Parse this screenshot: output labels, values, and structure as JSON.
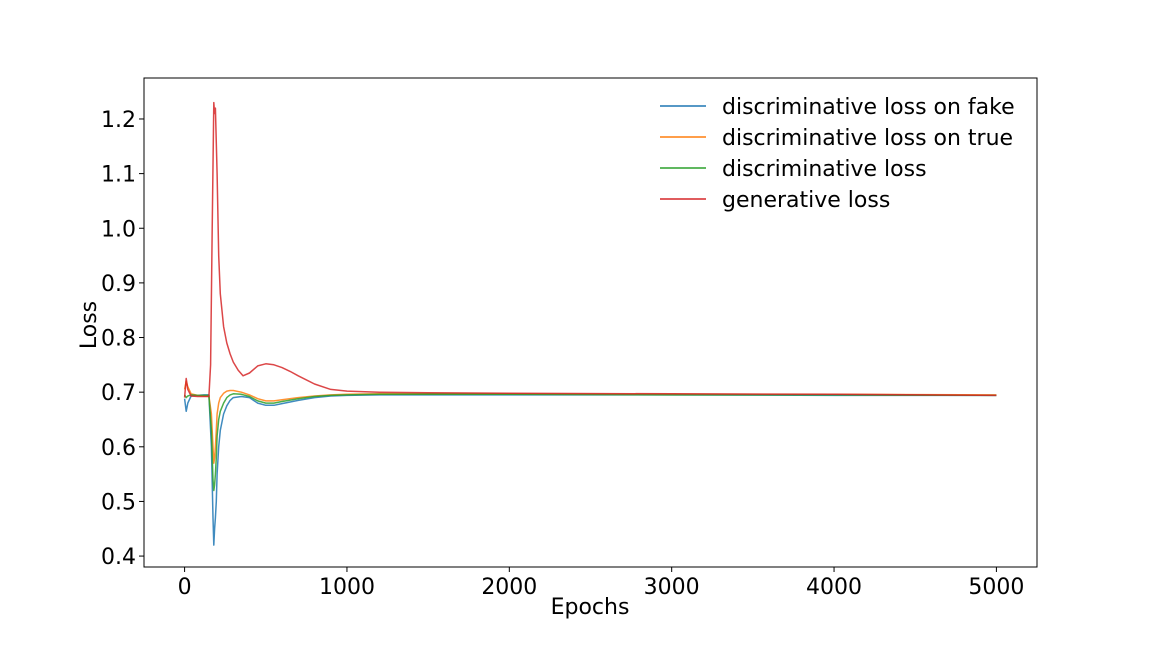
{
  "chart_data": {
    "type": "line",
    "title": "",
    "xlabel": "Epochs",
    "ylabel": "Loss",
    "xlim": [
      -250,
      5250
    ],
    "ylim": [
      0.38,
      1.275
    ],
    "xticks": [
      0,
      1000,
      2000,
      3000,
      4000,
      5000
    ],
    "xtick_labels": [
      "0",
      "1000",
      "2000",
      "3000",
      "4000",
      "5000"
    ],
    "yticks": [
      0.4,
      0.5,
      0.6,
      0.7,
      0.8,
      0.9,
      1.0,
      1.1,
      1.2
    ],
    "ytick_labels": [
      "0.4",
      "0.5",
      "0.6",
      "0.7",
      "0.8",
      "0.9",
      "1.0",
      "1.1",
      "1.2"
    ],
    "grid": false,
    "legend_position": "top-right",
    "series": [
      {
        "name": "discriminative loss on fake",
        "color": "#1f77b4",
        "x": [
          0,
          10,
          20,
          40,
          80,
          120,
          150,
          165,
          175,
          180,
          185,
          190,
          195,
          200,
          210,
          220,
          240,
          260,
          280,
          300,
          350,
          400,
          450,
          500,
          550,
          600,
          700,
          800,
          900,
          1000,
          1200,
          1500,
          2000,
          3000,
          4000,
          5000
        ],
        "y": [
          0.688,
          0.665,
          0.68,
          0.693,
          0.694,
          0.695,
          0.695,
          0.6,
          0.47,
          0.42,
          0.45,
          0.47,
          0.5,
          0.55,
          0.6,
          0.63,
          0.66,
          0.675,
          0.685,
          0.69,
          0.692,
          0.69,
          0.68,
          0.676,
          0.676,
          0.679,
          0.685,
          0.69,
          0.693,
          0.694,
          0.695,
          0.695,
          0.695,
          0.695,
          0.694,
          0.694
        ]
      },
      {
        "name": "discriminative loss on true",
        "color": "#ff7f0e",
        "x": [
          0,
          10,
          20,
          40,
          80,
          120,
          150,
          165,
          175,
          180,
          185,
          190,
          195,
          200,
          210,
          220,
          240,
          260,
          280,
          300,
          350,
          400,
          450,
          500,
          550,
          600,
          700,
          800,
          900,
          1000,
          1200,
          1500,
          2000,
          3000,
          4000,
          5000
        ],
        "y": [
          0.705,
          0.72,
          0.71,
          0.697,
          0.694,
          0.693,
          0.693,
          0.66,
          0.6,
          0.57,
          0.58,
          0.6,
          0.63,
          0.66,
          0.68,
          0.69,
          0.698,
          0.702,
          0.703,
          0.703,
          0.7,
          0.695,
          0.688,
          0.684,
          0.684,
          0.686,
          0.69,
          0.693,
          0.695,
          0.696,
          0.697,
          0.697,
          0.697,
          0.696,
          0.696,
          0.695
        ]
      },
      {
        "name": "discriminative loss",
        "color": "#2ca02c",
        "x": [
          0,
          10,
          20,
          40,
          80,
          120,
          150,
          165,
          175,
          180,
          185,
          190,
          195,
          200,
          210,
          220,
          240,
          260,
          280,
          300,
          350,
          400,
          450,
          500,
          550,
          600,
          700,
          800,
          900,
          1000,
          1200,
          1500,
          2000,
          3000,
          4000,
          5000
        ],
        "y": [
          0.695,
          0.69,
          0.693,
          0.695,
          0.694,
          0.694,
          0.694,
          0.63,
          0.54,
          0.52,
          0.53,
          0.55,
          0.58,
          0.62,
          0.65,
          0.665,
          0.68,
          0.69,
          0.695,
          0.697,
          0.696,
          0.692,
          0.684,
          0.68,
          0.68,
          0.683,
          0.688,
          0.692,
          0.694,
          0.695,
          0.696,
          0.696,
          0.696,
          0.695,
          0.695,
          0.694
        ]
      },
      {
        "name": "generative loss",
        "color": "#d62728",
        "x": [
          0,
          10,
          20,
          40,
          80,
          120,
          150,
          160,
          170,
          180,
          185,
          190,
          200,
          210,
          220,
          240,
          260,
          280,
          300,
          330,
          360,
          400,
          450,
          500,
          550,
          600,
          650,
          700,
          800,
          900,
          1000,
          1200,
          1500,
          2000,
          3000,
          4000,
          5000
        ],
        "y": [
          0.69,
          0.725,
          0.705,
          0.693,
          0.692,
          0.692,
          0.692,
          0.75,
          1.0,
          1.23,
          1.21,
          1.22,
          1.1,
          0.95,
          0.88,
          0.82,
          0.79,
          0.77,
          0.755,
          0.74,
          0.73,
          0.735,
          0.748,
          0.752,
          0.75,
          0.745,
          0.738,
          0.73,
          0.715,
          0.705,
          0.702,
          0.7,
          0.699,
          0.698,
          0.697,
          0.696,
          0.694
        ]
      }
    ]
  }
}
